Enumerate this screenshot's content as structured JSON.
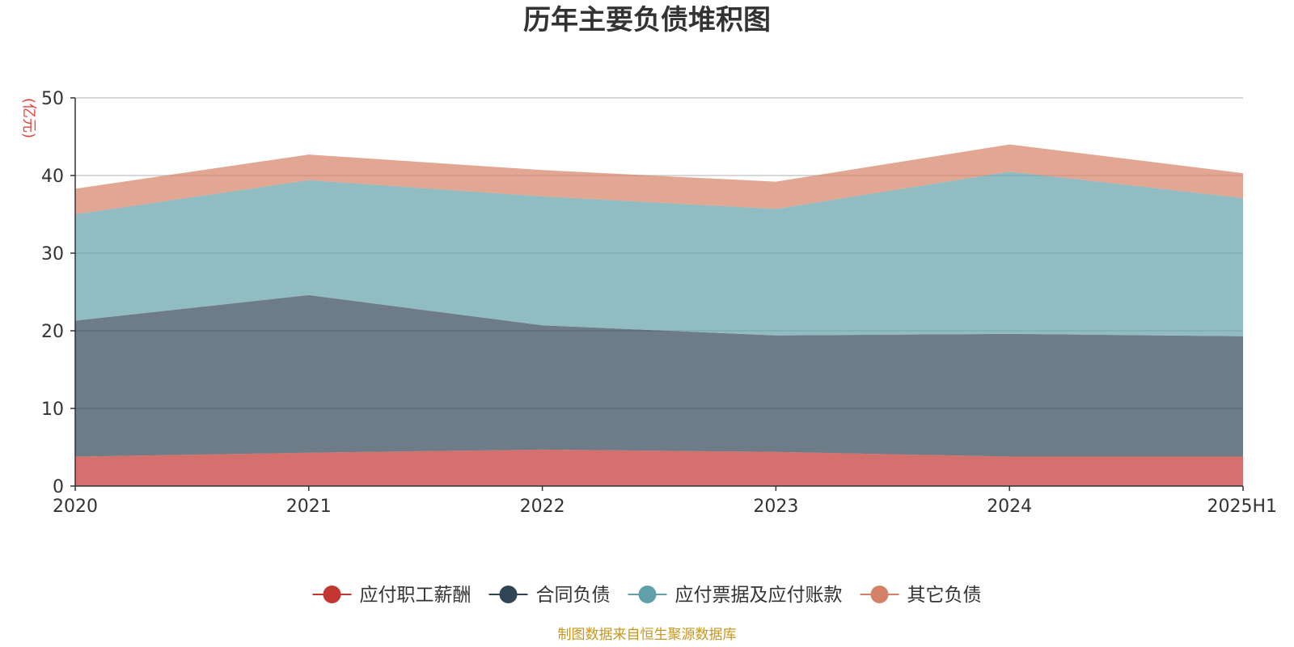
{
  "chart_data": {
    "type": "area",
    "stacked": true,
    "title": "历年主要负债堆积图",
    "ylabel": "(亿元)",
    "xlabel": "",
    "categories": [
      "2020",
      "2021",
      "2022",
      "2023",
      "2024",
      "2025H1"
    ],
    "ylim": [
      0,
      50
    ],
    "yticks": [
      0,
      10,
      20,
      30,
      40,
      50
    ],
    "grid": true,
    "legend_position": "bottom",
    "series": [
      {
        "name": "应付职工薪酬",
        "color": "#c23531",
        "values": [
          3.8,
          4.3,
          4.7,
          4.4,
          3.8,
          3.8
        ]
      },
      {
        "name": "合同负债",
        "color": "#2f4554",
        "values": [
          17.5,
          20.3,
          16.0,
          15.0,
          15.8,
          15.5
        ]
      },
      {
        "name": "应付票据及应付账款",
        "color": "#61a0a8",
        "values": [
          13.7,
          14.8,
          16.6,
          16.3,
          20.9,
          17.8
        ]
      },
      {
        "name": "其它负债",
        "color": "#d48265",
        "values": [
          3.3,
          3.3,
          3.4,
          3.5,
          3.5,
          3.2
        ]
      }
    ],
    "source_note": "制图数据来自恒生聚源数据库"
  }
}
